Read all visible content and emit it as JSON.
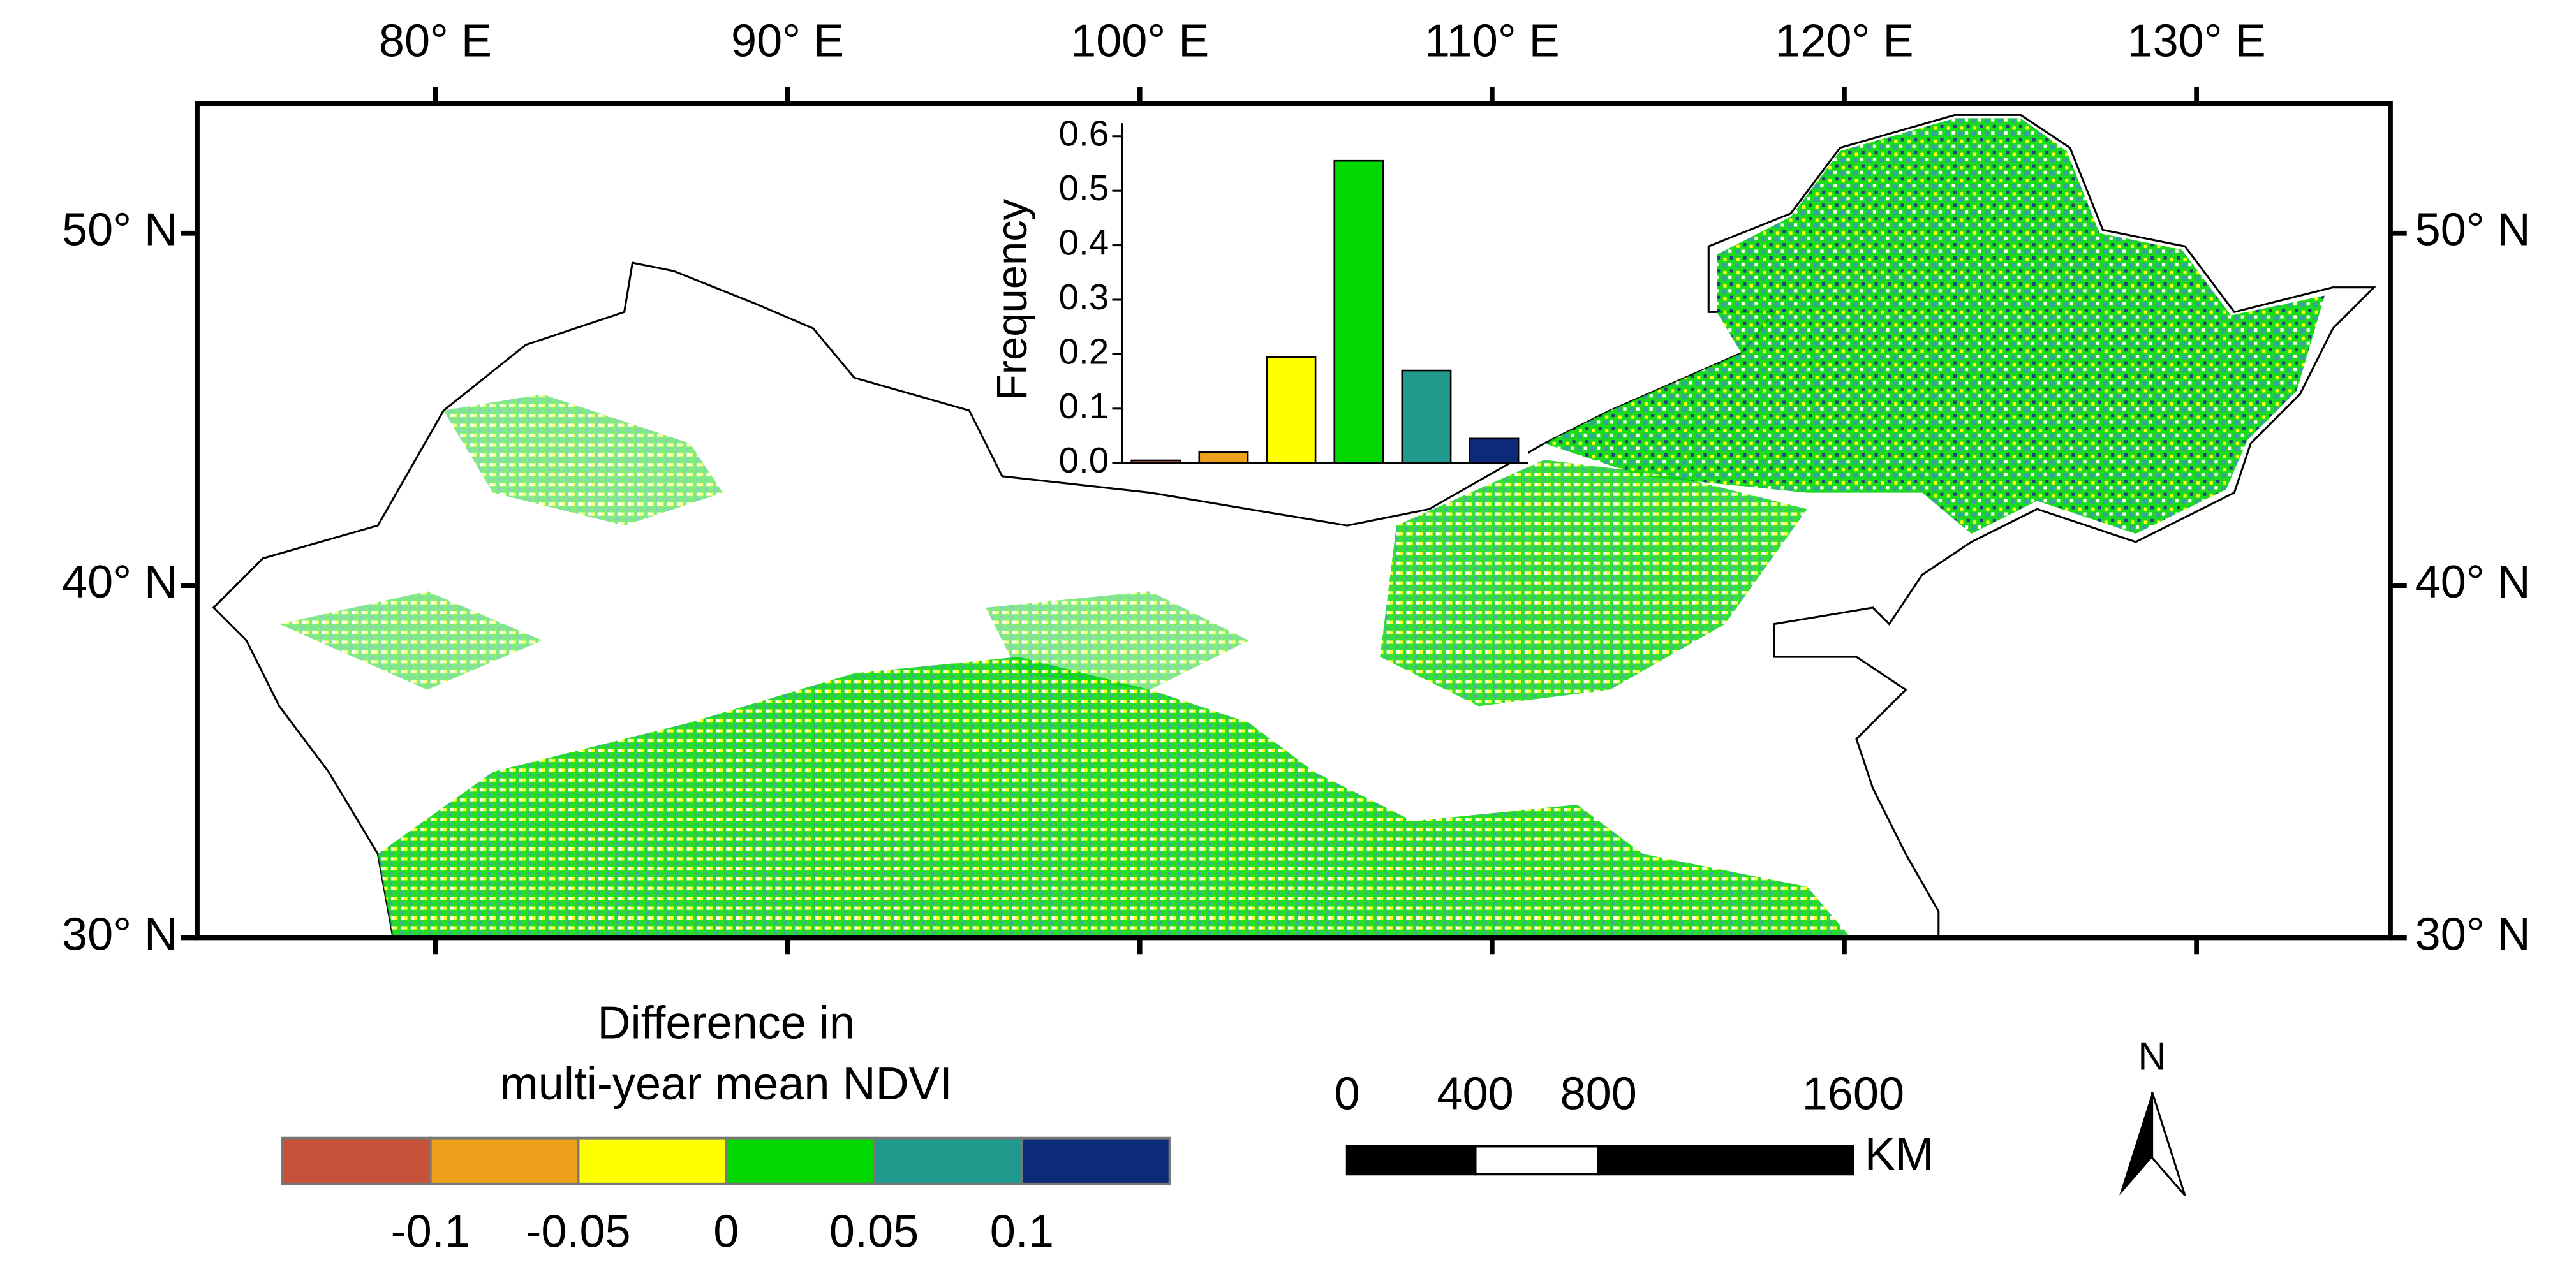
{
  "map": {
    "lon_labels": [
      "80° E",
      "90° E",
      "100° E",
      "110° E",
      "120° E",
      "130° E"
    ],
    "lat_labels": [
      "50° N",
      "40° N",
      "30° N"
    ],
    "legend": {
      "title": [
        "Difference in",
        "multi-year mean NDVI"
      ],
      "colors": [
        "#c65239",
        "#eca01c",
        "#ffff00",
        "#00d800",
        "#1f9a8c",
        "#0b2a78"
      ],
      "labels": [
        "-0.1",
        "-0.05",
        "0",
        "0.05",
        "0.1"
      ]
    },
    "scale_bar": {
      "labels": [
        "0",
        "400",
        "800",
        "1600"
      ],
      "unit": "KM"
    },
    "north": "N"
  },
  "chart_data": {
    "type": "bar",
    "ylabel": "Frequency",
    "categories": [
      null,
      null,
      null,
      null,
      null,
      null
    ],
    "values": [
      0.005,
      0.02,
      0.195,
      0.555,
      0.17,
      0.045
    ],
    "colors": [
      "#c65239",
      "#eca01c",
      "#ffff00",
      "#00d800",
      "#1f9a8c",
      "#0b2a78"
    ],
    "ylim": [
      0,
      0.6
    ],
    "yticks": [
      {
        "value": 0,
        "label": "0.0"
      },
      0.1,
      0.2,
      0.3,
      0.4,
      0.5,
      0.6
    ]
  }
}
